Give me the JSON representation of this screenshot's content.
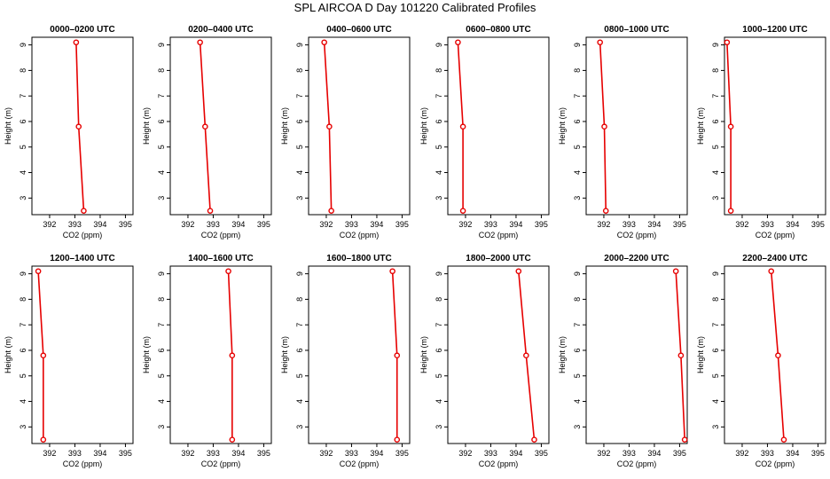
{
  "title": "SPL AIRCOA D  Day 101220  Calibrated Profiles",
  "colors": {
    "series": "#e60000",
    "axis": "#000000",
    "background": "#ffffff"
  },
  "chart_data": [
    {
      "type": "line",
      "title": "0000–0200 UTC",
      "xlabel": "CO2 (ppm)",
      "ylabel": "Height (m)",
      "xlim": [
        391.3,
        395.3
      ],
      "ylim": [
        2.35,
        9.3
      ],
      "xticks": [
        392,
        393,
        394,
        395
      ],
      "yticks": [
        3,
        4,
        5,
        6,
        7,
        8,
        9
      ],
      "grid": false,
      "series": [
        {
          "x": [
            393.35,
            393.15,
            393.05
          ],
          "y": [
            2.5,
            5.8,
            9.1
          ]
        }
      ]
    },
    {
      "type": "line",
      "title": "0200–0400 UTC",
      "xlabel": "CO2 (ppm)",
      "ylabel": "Height (m)",
      "xlim": [
        391.3,
        395.3
      ],
      "ylim": [
        2.35,
        9.3
      ],
      "xticks": [
        392,
        393,
        394,
        395
      ],
      "yticks": [
        3,
        4,
        5,
        6,
        7,
        8,
        9
      ],
      "grid": false,
      "series": [
        {
          "x": [
            392.88,
            392.68,
            392.48
          ],
          "y": [
            2.5,
            5.8,
            9.1
          ]
        }
      ]
    },
    {
      "type": "line",
      "title": "0400–0600 UTC",
      "xlabel": "CO2 (ppm)",
      "ylabel": "Height (m)",
      "xlim": [
        391.3,
        395.3
      ],
      "ylim": [
        2.35,
        9.3
      ],
      "xticks": [
        392,
        393,
        394,
        395
      ],
      "yticks": [
        3,
        4,
        5,
        6,
        7,
        8,
        9
      ],
      "grid": false,
      "series": [
        {
          "x": [
            392.2,
            392.12,
            391.92
          ],
          "y": [
            2.5,
            5.8,
            9.1
          ]
        }
      ]
    },
    {
      "type": "line",
      "title": "0600–0800 UTC",
      "xlabel": "CO2 (ppm)",
      "ylabel": "Height (m)",
      "xlim": [
        391.3,
        395.3
      ],
      "ylim": [
        2.35,
        9.3
      ],
      "xticks": [
        392,
        393,
        394,
        395
      ],
      "yticks": [
        3,
        4,
        5,
        6,
        7,
        8,
        9
      ],
      "grid": false,
      "series": [
        {
          "x": [
            391.9,
            391.9,
            391.7
          ],
          "y": [
            2.5,
            5.8,
            9.1
          ]
        }
      ]
    },
    {
      "type": "line",
      "title": "0800–1000 UTC",
      "xlabel": "CO2 (ppm)",
      "ylabel": "Height (m)",
      "xlim": [
        391.3,
        395.3
      ],
      "ylim": [
        2.35,
        9.3
      ],
      "xticks": [
        392,
        393,
        394,
        395
      ],
      "yticks": [
        3,
        4,
        5,
        6,
        7,
        8,
        9
      ],
      "grid": false,
      "series": [
        {
          "x": [
            392.08,
            392.02,
            391.85
          ],
          "y": [
            2.5,
            5.8,
            9.1
          ]
        }
      ]
    },
    {
      "type": "line",
      "title": "1000–1200 UTC",
      "xlabel": "CO2 (ppm)",
      "ylabel": "Height (m)",
      "xlim": [
        391.3,
        395.3
      ],
      "ylim": [
        2.35,
        9.3
      ],
      "xticks": [
        392,
        393,
        394,
        395
      ],
      "yticks": [
        3,
        4,
        5,
        6,
        7,
        8,
        9
      ],
      "grid": false,
      "series": [
        {
          "x": [
            391.55,
            391.55,
            391.4
          ],
          "y": [
            2.5,
            5.8,
            9.1
          ]
        }
      ]
    },
    {
      "type": "line",
      "title": "1200–1400 UTC",
      "xlabel": "CO2 (ppm)",
      "ylabel": "Height (m)",
      "xlim": [
        391.3,
        395.3
      ],
      "ylim": [
        2.35,
        9.3
      ],
      "xticks": [
        392,
        393,
        394,
        395
      ],
      "yticks": [
        3,
        4,
        5,
        6,
        7,
        8,
        9
      ],
      "grid": false,
      "series": [
        {
          "x": [
            391.75,
            391.75,
            391.55
          ],
          "y": [
            2.5,
            5.8,
            9.1
          ]
        }
      ]
    },
    {
      "type": "line",
      "title": "1400–1600 UTC",
      "xlabel": "CO2 (ppm)",
      "ylabel": "Height (m)",
      "xlim": [
        391.3,
        395.3
      ],
      "ylim": [
        2.35,
        9.3
      ],
      "xticks": [
        392,
        393,
        394,
        395
      ],
      "yticks": [
        3,
        4,
        5,
        6,
        7,
        8,
        9
      ],
      "grid": false,
      "series": [
        {
          "x": [
            393.75,
            393.75,
            393.6
          ],
          "y": [
            2.5,
            5.8,
            9.1
          ]
        }
      ]
    },
    {
      "type": "line",
      "title": "1600–1800 UTC",
      "xlabel": "CO2 (ppm)",
      "ylabel": "Height (m)",
      "xlim": [
        391.3,
        395.3
      ],
      "ylim": [
        2.35,
        9.3
      ],
      "xticks": [
        392,
        393,
        394,
        395
      ],
      "yticks": [
        3,
        4,
        5,
        6,
        7,
        8,
        9
      ],
      "grid": false,
      "series": [
        {
          "x": [
            394.8,
            394.8,
            394.62
          ],
          "y": [
            2.5,
            5.8,
            9.1
          ]
        }
      ]
    },
    {
      "type": "line",
      "title": "1800–2000 UTC",
      "xlabel": "CO2 (ppm)",
      "ylabel": "Height (m)",
      "xlim": [
        391.3,
        395.3
      ],
      "ylim": [
        2.35,
        9.3
      ],
      "xticks": [
        392,
        393,
        394,
        395
      ],
      "yticks": [
        3,
        4,
        5,
        6,
        7,
        8,
        9
      ],
      "grid": false,
      "series": [
        {
          "x": [
            394.72,
            394.4,
            394.1
          ],
          "y": [
            2.5,
            5.8,
            9.1
          ]
        }
      ]
    },
    {
      "type": "line",
      "title": "2000–2200 UTC",
      "xlabel": "CO2 (ppm)",
      "ylabel": "Height (m)",
      "xlim": [
        391.3,
        395.3
      ],
      "ylim": [
        2.35,
        9.3
      ],
      "xticks": [
        392,
        393,
        394,
        395
      ],
      "yticks": [
        3,
        4,
        5,
        6,
        7,
        8,
        9
      ],
      "grid": false,
      "series": [
        {
          "x": [
            395.2,
            395.05,
            394.85
          ],
          "y": [
            2.5,
            5.8,
            9.1
          ]
        }
      ]
    },
    {
      "type": "line",
      "title": "2200–2400 UTC",
      "xlabel": "CO2 (ppm)",
      "ylabel": "Height (m)",
      "xlim": [
        391.3,
        395.3
      ],
      "ylim": [
        2.35,
        9.3
      ],
      "xticks": [
        392,
        393,
        394,
        395
      ],
      "yticks": [
        3,
        4,
        5,
        6,
        7,
        8,
        9
      ],
      "grid": false,
      "series": [
        {
          "x": [
            393.65,
            393.42,
            393.15
          ],
          "y": [
            2.5,
            5.8,
            9.1
          ]
        }
      ]
    }
  ]
}
